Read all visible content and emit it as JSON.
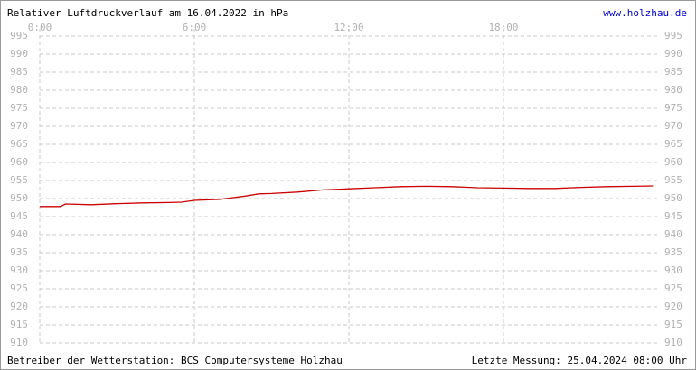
{
  "chart_data": {
    "type": "line",
    "title": "Relativer Luftdruckverlauf am 16.04.2022 in hPa",
    "website": "www.holzhau.de",
    "operator": "Betreiber der Wetterstation: BCS Computersysteme Holzhau",
    "last_measurement": "Letzte Messung: 25.04.2024 08:00 Uhr",
    "x": [
      0,
      0.8,
      1,
      2,
      3,
      4,
      5,
      5.5,
      6,
      7,
      8,
      8.5,
      9,
      10,
      11,
      12,
      13,
      14,
      15,
      16,
      17,
      18,
      19,
      20,
      21,
      22,
      23,
      23.8
    ],
    "series": [
      {
        "name": "Luftdruck",
        "color": "#cc0000",
        "values": [
          947.8,
          947.8,
          948.5,
          948.3,
          948.6,
          948.8,
          948.9,
          949.0,
          949.5,
          949.8,
          950.7,
          951.3,
          951.4,
          951.8,
          952.4,
          952.7,
          953.0,
          953.3,
          953.4,
          953.3,
          953.0,
          952.9,
          952.8,
          952.8,
          953.1,
          953.3,
          953.4,
          953.5
        ]
      }
    ],
    "xlim": [
      0,
      24
    ],
    "xticks": [
      {
        "value": 0,
        "label": "0:00"
      },
      {
        "value": 6,
        "label": "6:00"
      },
      {
        "value": 12,
        "label": "12:00"
      },
      {
        "value": 18,
        "label": "18:00"
      }
    ],
    "ylim": [
      910,
      995
    ],
    "yticks": [
      910,
      915,
      920,
      925,
      930,
      935,
      940,
      945,
      950,
      955,
      960,
      965,
      970,
      975,
      980,
      985,
      990,
      995
    ],
    "grid": true
  }
}
